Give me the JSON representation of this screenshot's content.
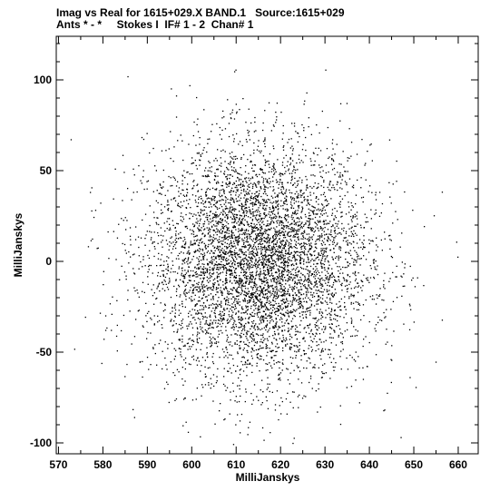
{
  "header": {
    "line1": "Imag vs Real for 1615+029.X BAND.1   Source:1615+029",
    "line2": "Ants * - *     Stokes I  IF# 1 - 2  Chan# 1"
  },
  "chart_data": {
    "type": "scatter",
    "title": "Imag vs Real for 1615+029.X BAND.1   Source:1615+029",
    "subtitle": "Ants * - *     Stokes I  IF# 1 - 2  Chan# 1",
    "xlabel": "MilliJanskys",
    "ylabel": "MilliJanskys",
    "xlim": [
      569.5,
      664.5
    ],
    "ylim": [
      -106,
      124
    ],
    "xticks": [
      570,
      580,
      590,
      600,
      610,
      620,
      630,
      640,
      650,
      660
    ],
    "yticks": [
      -100,
      -50,
      0,
      50,
      100
    ],
    "xtick_labels": [
      "570",
      "580",
      "590",
      "600",
      "610",
      "620",
      "630",
      "640",
      "650",
      "660"
    ],
    "ytick_labels": [
      "-100",
      "-50",
      "0",
      "50",
      "100"
    ],
    "grid": false,
    "legend": "none",
    "marker_color": "#000000",
    "distribution": {
      "center": [
        615,
        0
      ],
      "spread": [
        12.5,
        32
      ],
      "count": 6000,
      "x_range": [
        572,
        662
      ],
      "y_range": [
        -102,
        110
      ]
    }
  }
}
